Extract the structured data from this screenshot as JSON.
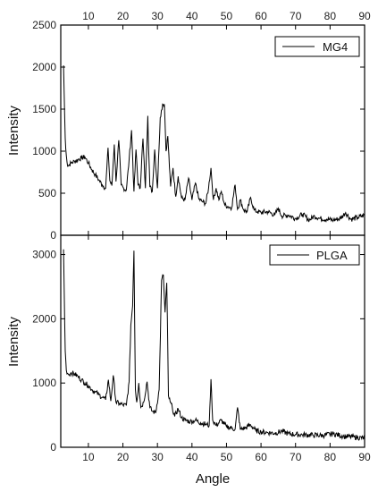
{
  "chart_data": [
    {
      "type": "line",
      "panel": "top",
      "xlabel": "",
      "ylabel": "Intensity",
      "xlim": [
        2,
        90
      ],
      "ylim": [
        0,
        2500
      ],
      "xticks": [
        10,
        20,
        30,
        40,
        50,
        60,
        70,
        80,
        90
      ],
      "xtick_position": "top",
      "yticks": [
        0,
        500,
        1000,
        1500,
        2000,
        2500
      ],
      "legend_position": "top-right",
      "grid": false,
      "series": [
        {
          "name": "MG4",
          "color": "#000000",
          "x": [
            2.8,
            3.0,
            3.3,
            3.6,
            4.0,
            4.5,
            5.0,
            6.0,
            7.0,
            8.0,
            9.0,
            10.0,
            11.0,
            12.0,
            13.0,
            14.0,
            15.0,
            15.7,
            16.2,
            16.8,
            17.5,
            18.0,
            18.8,
            19.5,
            20.2,
            21.0,
            21.8,
            22.5,
            23.2,
            23.8,
            24.4,
            25.0,
            25.8,
            26.5,
            27.2,
            27.8,
            28.5,
            29.2,
            30.0,
            30.8,
            31.5,
            32.0,
            32.5,
            33.0,
            33.8,
            34.5,
            35.3,
            36.0,
            37.0,
            38.0,
            39.0,
            40.0,
            41.0,
            42.0,
            43.0,
            44.0,
            44.8,
            45.5,
            46.2,
            47.0,
            47.8,
            48.5,
            49.5,
            50.5,
            51.5,
            52.5,
            53.2,
            54.0,
            55.0,
            56.0,
            57.0,
            58.0,
            59.0,
            60.0,
            62.0,
            64.0,
            65.0,
            66.0,
            68.0,
            70.0,
            72.0,
            74.0,
            75.5,
            77.0,
            79.0,
            81.0,
            83.0,
            84.5,
            86.0,
            88.0,
            90.0
          ],
          "values": [
            2020,
            1650,
            1150,
            950,
            820,
            840,
            860,
            880,
            900,
            920,
            930,
            860,
            780,
            720,
            660,
            600,
            560,
            1040,
            650,
            590,
            1080,
            640,
            1130,
            600,
            560,
            540,
            900,
            1250,
            520,
            1020,
            600,
            560,
            1150,
            560,
            1420,
            580,
            520,
            1020,
            560,
            1400,
            1560,
            1560,
            1000,
            1180,
            580,
            800,
            460,
            700,
            440,
            420,
            680,
            420,
            620,
            430,
            400,
            380,
            560,
            800,
            420,
            560,
            420,
            520,
            360,
            340,
            330,
            600,
            310,
            420,
            300,
            280,
            450,
            300,
            280,
            270,
            280,
            240,
            320,
            230,
            240,
            200,
            250,
            180,
            230,
            200,
            190,
            180,
            200,
            270,
            190,
            210,
            240
          ]
        }
      ]
    },
    {
      "type": "line",
      "panel": "bottom",
      "xlabel": "Angle",
      "ylabel": "Intensity",
      "xlim": [
        2,
        90
      ],
      "ylim": [
        0,
        3300
      ],
      "xticks": [
        10,
        20,
        30,
        40,
        50,
        60,
        70,
        80,
        90
      ],
      "yticks": [
        0,
        1000,
        2000,
        3000
      ],
      "legend_position": "top-right",
      "grid": false,
      "series": [
        {
          "name": "PLGA",
          "color": "#000000",
          "x": [
            2.8,
            3.0,
            3.3,
            3.6,
            4.0,
            4.5,
            5.0,
            6.0,
            7.0,
            8.0,
            9.0,
            10.0,
            11.0,
            12.0,
            13.0,
            14.0,
            15.0,
            15.8,
            16.5,
            17.2,
            18.0,
            19.0,
            20.0,
            21.0,
            21.8,
            22.3,
            22.8,
            23.2,
            23.6,
            24.0,
            24.6,
            25.2,
            26.0,
            27.0,
            27.8,
            28.5,
            29.5,
            30.5,
            31.2,
            31.7,
            32.2,
            32.7,
            33.2,
            33.7,
            34.3,
            35.0,
            36.0,
            37.0,
            38.0,
            39.5,
            41.0,
            42.5,
            44.0,
            45.0,
            45.5,
            46.0,
            47.0,
            48.5,
            50.0,
            51.5,
            52.5,
            53.2,
            54.0,
            55.5,
            57.0,
            58.5,
            60.0,
            62.0,
            64.0,
            66.0,
            68.0,
            70.0,
            72.0,
            75.0,
            78.0,
            81.0,
            84.0,
            87.0,
            90.0
          ],
          "values": [
            3080,
            2400,
            1500,
            1200,
            1150,
            1130,
            1160,
            1140,
            1100,
            1050,
            1000,
            960,
            900,
            860,
            820,
            780,
            740,
            1050,
            720,
            1120,
            700,
            680,
            660,
            650,
            1020,
            1900,
            2200,
            3060,
            900,
            700,
            1000,
            620,
            700,
            1020,
            620,
            560,
            540,
            900,
            2600,
            2680,
            2100,
            2560,
            800,
            700,
            620,
            480,
            600,
            460,
            420,
            400,
            420,
            380,
            360,
            340,
            1060,
            420,
            340,
            420,
            320,
            300,
            280,
            620,
            280,
            300,
            350,
            260,
            240,
            230,
            220,
            250,
            210,
            200,
            195,
            190,
            185,
            210,
            170,
            160,
            140
          ]
        }
      ]
    }
  ]
}
